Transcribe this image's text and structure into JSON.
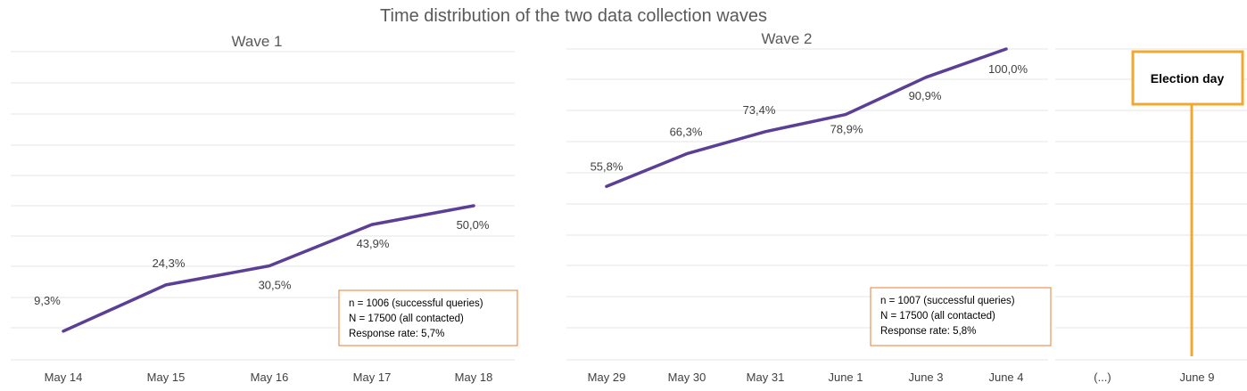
{
  "title": "Time distribution of the two data collection waves",
  "colors": {
    "line": "#5b3e96",
    "box_wave": "#ED7D31",
    "box_election": "#F0A830",
    "grid": "#e6e6e6"
  },
  "chart_data": [
    {
      "type": "line",
      "title": "Wave 1",
      "categories": [
        "May 14",
        "May 15",
        "May 16",
        "May 17",
        "May 18"
      ],
      "series": [
        {
          "values": [
            9.3,
            24.3,
            30.5,
            43.9,
            50.0
          ]
        }
      ],
      "data_labels": [
        "9,3%",
        "24,3%",
        "30,5%",
        "43,9%",
        "50,0%"
      ],
      "ylim": [
        0,
        100
      ],
      "grid": true,
      "info_box": [
        "n = 1006 (successful queries)",
        "N = 17500 (all contacted)",
        "Response rate: 5,7%"
      ]
    },
    {
      "type": "line",
      "title": "Wave 2",
      "categories": [
        "May 29",
        "May 30",
        "May 31",
        "June 1",
        "June 3",
        "June 4"
      ],
      "series": [
        {
          "values": [
            55.8,
            66.3,
            73.4,
            78.9,
            90.9,
            100.0
          ]
        }
      ],
      "data_labels": [
        "55,8%",
        "66,3%",
        "73,4%",
        "78,9%",
        "90,9%",
        "100,0%"
      ],
      "ylim": [
        0,
        100
      ],
      "grid": true,
      "info_box": [
        "n = 1007 (successful queries)",
        "N = 17500 (all contacted)",
        "Response rate: 5,8%"
      ]
    },
    {
      "type": "line",
      "title": "",
      "categories": [
        "(...)",
        "June 9"
      ],
      "grid": true,
      "annotation": {
        "label": "Election day",
        "category": "June 9"
      }
    }
  ]
}
